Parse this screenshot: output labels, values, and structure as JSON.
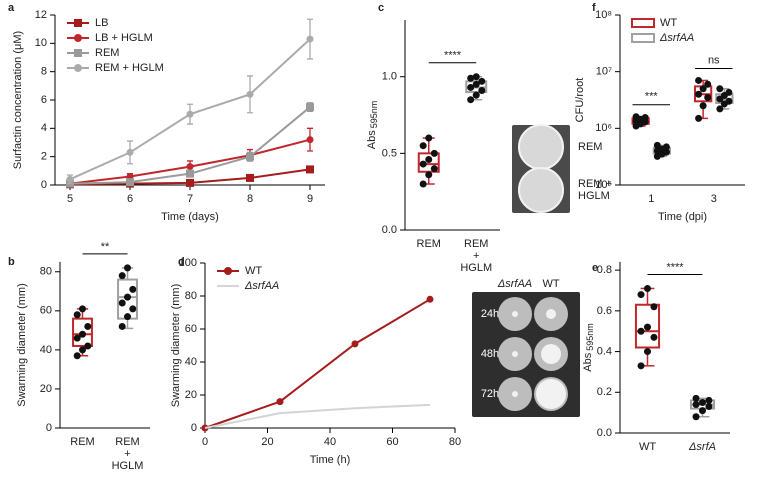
{
  "chart_data": [
    {
      "panel": "a",
      "type": "line",
      "x_label": "Time (days)",
      "y_label": "Surfactin concentration (μM)",
      "x": [
        5,
        6,
        7,
        8,
        9
      ],
      "xlim": [
        4.75,
        9.25
      ],
      "xticks": [
        5,
        6,
        7,
        8,
        9
      ],
      "ylim": [
        0,
        12
      ],
      "yticks": [
        0,
        2,
        4,
        6,
        8,
        10,
        12
      ],
      "legend": "upper left",
      "series": [
        {
          "name": "LB",
          "color": "#a61c1c",
          "marker": "square",
          "values": [
            0.05,
            0.1,
            0.15,
            0.5,
            1.1
          ],
          "errors": [
            0.05,
            0.05,
            0.1,
            0.1,
            0.1
          ]
        },
        {
          "name": "LB + HGLM",
          "color": "#c0272d",
          "marker": "circle",
          "values": [
            0.1,
            0.6,
            1.3,
            2.1,
            3.2
          ],
          "errors": [
            0.1,
            0.2,
            0.4,
            0.4,
            0.8
          ]
        },
        {
          "name": "REM",
          "color": "#9a9a9a",
          "marker": "square",
          "values": [
            0.1,
            0.2,
            0.8,
            2.0,
            5.5
          ],
          "errors": [
            0.1,
            0.1,
            0.2,
            0.3,
            0.3
          ]
        },
        {
          "name": "REM + HGLM",
          "color": "#ababab",
          "marker": "circle",
          "values": [
            0.4,
            2.3,
            5.0,
            6.4,
            10.3
          ],
          "errors": [
            0.3,
            0.8,
            0.7,
            1.3,
            1.4
          ]
        }
      ]
    },
    {
      "panel": "b",
      "type": "box",
      "y_label": "Swarming diameter (mm)",
      "categories": [
        "REM",
        "REM\n+\nHGLM"
      ],
      "ylim": [
        0,
        85
      ],
      "yticks": [
        0,
        20,
        40,
        60,
        80
      ],
      "colors": [
        "#c0272d",
        "#a0a0a0"
      ],
      "annotation": "**",
      "boxes": [
        {
          "min": 37,
          "q1": 42,
          "median": 48,
          "q3": 56,
          "max": 61,
          "points": [
            37,
            40,
            42,
            46,
            48,
            52,
            58,
            61
          ]
        },
        {
          "min": 51,
          "q1": 56,
          "median": 67,
          "q3": 76,
          "max": 82,
          "points": [
            52,
            57,
            61,
            64,
            67,
            71,
            78,
            82
          ]
        }
      ]
    },
    {
      "panel": "c",
      "type": "box",
      "y_label": "Abs",
      "y_label_sub": "595nm",
      "categories": [
        "REM",
        "REM\n+\nHGLM"
      ],
      "ylim": [
        0,
        1.37
      ],
      "yticks": [
        {
          "value": 0,
          "label": "0.0"
        },
        0.5,
        {
          "value": 1,
          "label": "1.0"
        }
      ],
      "colors": [
        "#c0272d",
        "#a0a0a0"
      ],
      "annotation": "****",
      "inset_labels": [
        "REM",
        "REM +\nHGLM"
      ],
      "boxes": [
        {
          "min": 0.3,
          "q1": 0.38,
          "median": 0.43,
          "q3": 0.5,
          "max": 0.6,
          "points": [
            0.3,
            0.36,
            0.4,
            0.43,
            0.46,
            0.5,
            0.55,
            0.6
          ]
        },
        {
          "min": 0.85,
          "q1": 0.9,
          "median": 0.93,
          "q3": 0.97,
          "max": 1.0,
          "points": [
            0.85,
            0.88,
            0.91,
            0.93,
            0.95,
            0.97,
            0.99,
            1.0
          ]
        }
      ]
    },
    {
      "panel": "d",
      "type": "line",
      "x_label": "Time (h)",
      "y_label": "Swarming diameter (mm)",
      "x": [
        0,
        24,
        48,
        72
      ],
      "xlim": [
        0,
        80
      ],
      "xticks": [
        0,
        20,
        40,
        60,
        80
      ],
      "ylim": [
        0,
        100
      ],
      "yticks": [
        0,
        20,
        40,
        60,
        80,
        100
      ],
      "legend": "upper left",
      "inset_columns": [
        "ΔsrfAA",
        "WT"
      ],
      "inset_rows": [
        "24h",
        "48h",
        "72h"
      ],
      "series": [
        {
          "name": "WT",
          "color": "#a61c1c",
          "marker": "circle",
          "values": [
            0,
            16,
            51,
            78
          ]
        },
        {
          "name": "ΔsrfAA",
          "color": "#d4d4d4",
          "marker": "none",
          "values": [
            0,
            9,
            12,
            14
          ]
        }
      ]
    },
    {
      "panel": "e",
      "type": "box",
      "y_label": "Abs",
      "y_label_sub": "595nm",
      "categories": [
        "WT",
        "ΔsrfA"
      ],
      "ylim": [
        0,
        0.84
      ],
      "yticks": [
        {
          "value": 0,
          "label": "0.0"
        },
        0.2,
        0.4,
        0.6,
        0.8
      ],
      "colors": [
        "#c0272d",
        "#a0a0a0"
      ],
      "annotation": "****",
      "boxes": [
        {
          "min": 0.33,
          "q1": 0.42,
          "median": 0.5,
          "q3": 0.63,
          "max": 0.71,
          "points": [
            0.33,
            0.4,
            0.47,
            0.5,
            0.52,
            0.62,
            0.68,
            0.71
          ]
        },
        {
          "min": 0.08,
          "q1": 0.12,
          "median": 0.14,
          "q3": 0.16,
          "max": 0.17,
          "points": [
            0.08,
            0.11,
            0.13,
            0.14,
            0.15,
            0.16,
            0.17
          ]
        }
      ]
    },
    {
      "panel": "f",
      "type": "box",
      "y_label": "CFU/root",
      "x_label": "Time (dpi)",
      "categories": [
        "1",
        "3"
      ],
      "log_scale": true,
      "ylim": [
        100000,
        100000000
      ],
      "yticks": [
        {
          "value": 100000,
          "label": "10⁵"
        },
        {
          "value": 1000000,
          "label": "10⁶"
        },
        {
          "value": 10000000,
          "label": "10⁷"
        },
        {
          "value": 100000000,
          "label": "10⁸"
        }
      ],
      "legend": "upper left",
      "annotations": [
        "***",
        "ns"
      ],
      "series": [
        {
          "name": "WT",
          "color": "#c0272d",
          "boxes": [
            {
              "min": 1100000,
              "q1": 1200000,
              "median": 1350000,
              "q3": 1500000,
              "max": 1600000,
              "points": [
                1100000,
                1200000,
                1300000,
                1350000,
                1450000,
                1550000,
                1600000
              ]
            },
            {
              "min": 1500000,
              "q1": 3000000,
              "median": 4000000,
              "q3": 5500000,
              "max": 7000000,
              "points": [
                1500000,
                2500000,
                3500000,
                4000000,
                5000000,
                6000000,
                7000000
              ]
            }
          ]
        },
        {
          "name": "ΔsrfAA",
          "color": "#a0a0a0",
          "boxes": [
            {
              "min": 320000,
              "q1": 360000,
              "median": 400000,
              "q3": 450000,
              "max": 500000,
              "points": [
                320000,
                350000,
                380000,
                400000,
                430000,
                470000,
                500000
              ]
            },
            {
              "min": 2200000,
              "q1": 2800000,
              "median": 3300000,
              "q3": 4000000,
              "max": 5000000,
              "points": [
                2200000,
                2700000,
                3000000,
                3300000,
                3800000,
                4300000,
                5000000
              ]
            }
          ]
        }
      ]
    }
  ]
}
